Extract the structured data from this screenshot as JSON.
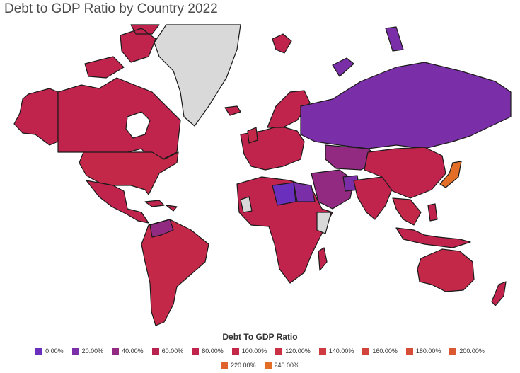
{
  "title": "Debt to GDP Ratio by Country 2022",
  "legend": {
    "title": "Debt To GDP Ratio",
    "items": [
      {
        "label": "0.00%",
        "color": "#6b2fbd"
      },
      {
        "label": "20.00%",
        "color": "#7a2fa8"
      },
      {
        "label": "40.00%",
        "color": "#932a82"
      },
      {
        "label": "60.00%",
        "color": "#b8224f"
      },
      {
        "label": "80.00%",
        "color": "#c0234c"
      },
      {
        "label": "100.00%",
        "color": "#c42848"
      },
      {
        "label": "120.00%",
        "color": "#c93044"
      },
      {
        "label": "140.00%",
        "color": "#cd3a40"
      },
      {
        "label": "160.00%",
        "color": "#d1443c"
      },
      {
        "label": "180.00%",
        "color": "#d64e37"
      },
      {
        "label": "200.00%",
        "color": "#da5832"
      },
      {
        "label": "220.00%",
        "color": "#de632d"
      },
      {
        "label": "240.00%",
        "color": "#e26e28"
      }
    ]
  },
  "colors": {
    "no_data": "#d9d9d9",
    "border": "#1a1a1a"
  }
}
